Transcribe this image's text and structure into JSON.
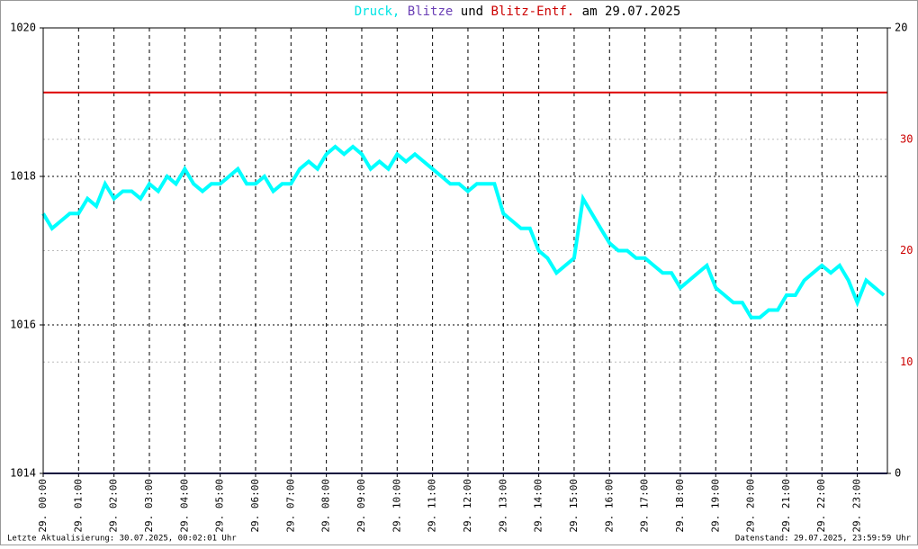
{
  "chart_data": {
    "type": "line",
    "title_parts": [
      {
        "text": "Druck,",
        "color": "#00e5e5"
      },
      {
        "text": "Blitze",
        "color": "#6a3fb5"
      },
      {
        "text": "und",
        "color": "#000000"
      },
      {
        "text": "Blitz-Entf.",
        "color": "#cc0000"
      },
      {
        "text": "am 29.07.2025",
        "color": "#000000"
      }
    ],
    "footer_left": "Letzte Aktualisierung: 30.07.2025, 00:02:01 Uhr",
    "footer_right": "Datenstand: 29.07.2025, 23:59:59 Uhr",
    "xlim": [
      0,
      23.85
    ],
    "xticks": [
      {
        "value": 0,
        "label": "29. 00:00"
      },
      {
        "value": 1,
        "label": "29. 01:00"
      },
      {
        "value": 2,
        "label": "29. 02:00"
      },
      {
        "value": 3,
        "label": "29. 03:00"
      },
      {
        "value": 4,
        "label": "29. 04:00"
      },
      {
        "value": 5,
        "label": "29. 05:00"
      },
      {
        "value": 6,
        "label": "29. 06:00"
      },
      {
        "value": 7,
        "label": "29. 07:00"
      },
      {
        "value": 8,
        "label": "29. 08:00"
      },
      {
        "value": 9,
        "label": "29. 09:00"
      },
      {
        "value": 10,
        "label": "29. 10:00"
      },
      {
        "value": 11,
        "label": "29. 11:00"
      },
      {
        "value": 12,
        "label": "29. 12:00"
      },
      {
        "value": 13,
        "label": "29. 13:00"
      },
      {
        "value": 14,
        "label": "29. 14:00"
      },
      {
        "value": 15,
        "label": "29. 15:00"
      },
      {
        "value": 16,
        "label": "29. 16:00"
      },
      {
        "value": 17,
        "label": "29. 17:00"
      },
      {
        "value": 18,
        "label": "29. 18:00"
      },
      {
        "value": 19,
        "label": "29. 19:00"
      },
      {
        "value": 20,
        "label": "29. 20:00"
      },
      {
        "value": 21,
        "label": "29. 21:00"
      },
      {
        "value": 22,
        "label": "29. 22:00"
      },
      {
        "value": 23,
        "label": "29. 23:00"
      }
    ],
    "ylim": [
      1014,
      1020
    ],
    "yticks": [
      1014,
      1016,
      1018,
      1020
    ],
    "y2lim": [
      0,
      20
    ],
    "y2ticks": [
      0,
      20
    ],
    "y3lim": [
      0,
      40
    ],
    "y3ticks": [
      10,
      20,
      30
    ],
    "y3color": "#cc0000",
    "grid": true,
    "series": [
      {
        "name": "Druck",
        "color": "#00ffff",
        "axis": "y",
        "x": [
          0,
          0.25,
          0.5,
          0.75,
          1,
          1.25,
          1.5,
          1.75,
          2,
          2.25,
          2.5,
          2.75,
          3,
          3.25,
          3.5,
          3.75,
          4,
          4.25,
          4.5,
          4.75,
          5,
          5.25,
          5.5,
          5.75,
          6,
          6.25,
          6.5,
          6.75,
          7,
          7.25,
          7.5,
          7.75,
          8,
          8.25,
          8.5,
          8.75,
          9,
          9.25,
          9.5,
          9.75,
          10,
          10.25,
          10.5,
          10.75,
          11,
          11.25,
          11.5,
          11.75,
          12,
          12.25,
          12.5,
          12.75,
          13,
          13.25,
          13.5,
          13.75,
          14,
          14.25,
          14.5,
          14.75,
          15,
          15.25,
          15.5,
          15.75,
          16,
          16.25,
          16.5,
          16.75,
          17,
          17.25,
          17.5,
          17.75,
          18,
          18.25,
          18.5,
          18.75,
          19,
          19.25,
          19.5,
          19.75,
          20,
          20.25,
          20.5,
          20.75,
          21,
          21.25,
          21.5,
          21.75,
          22,
          22.25,
          22.5,
          22.75,
          23,
          23.25,
          23.5,
          23.75
        ],
        "values": [
          1017.5,
          1017.3,
          1017.4,
          1017.5,
          1017.5,
          1017.7,
          1017.6,
          1017.9,
          1017.7,
          1017.8,
          1017.8,
          1017.7,
          1017.9,
          1017.8,
          1018.0,
          1017.9,
          1018.1,
          1017.9,
          1017.8,
          1017.9,
          1017.9,
          1018.0,
          1018.1,
          1017.9,
          1017.9,
          1018.0,
          1017.8,
          1017.9,
          1017.9,
          1018.1,
          1018.2,
          1018.1,
          1018.3,
          1018.4,
          1018.3,
          1018.4,
          1018.3,
          1018.1,
          1018.2,
          1018.1,
          1018.3,
          1018.2,
          1018.3,
          1018.2,
          1018.1,
          1018.0,
          1017.9,
          1017.9,
          1017.8,
          1017.9,
          1017.9,
          1017.9,
          1017.5,
          1017.4,
          1017.3,
          1017.3,
          1017.0,
          1016.9,
          1016.7,
          1016.8,
          1016.9,
          1017.7,
          1017.5,
          1017.3,
          1017.1,
          1017.0,
          1017.0,
          1016.9,
          1016.9,
          1016.8,
          1016.7,
          1016.7,
          1016.5,
          1016.6,
          1016.7,
          1016.8,
          1016.5,
          1016.4,
          1016.3,
          1016.3,
          1016.1,
          1016.1,
          1016.2,
          1016.2,
          1016.4,
          1016.4,
          1016.6,
          1016.7,
          1016.8,
          1016.7,
          1016.8,
          1016.6,
          1016.3,
          1016.6,
          1016.5,
          1016.4
        ]
      },
      {
        "name": "Blitze",
        "color": "#1a1a7a",
        "axis": "y2",
        "x": [
          0,
          23.85
        ],
        "values": [
          0,
          0
        ]
      },
      {
        "name": "Blitz-Entf.",
        "color": "#dd0000",
        "axis": "y3",
        "x": [
          0,
          23.85
        ],
        "values": [
          34.2,
          34.2
        ]
      }
    ]
  }
}
